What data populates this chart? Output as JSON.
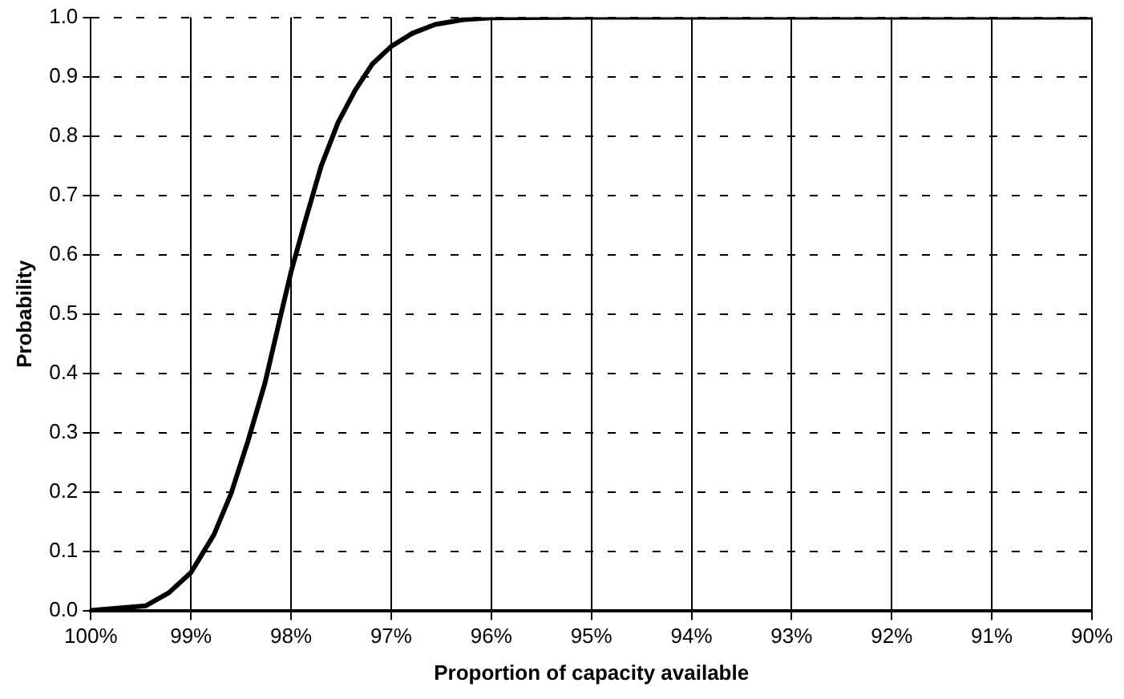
{
  "chart_data": {
    "type": "line",
    "xlabel": "Proportion of capacity available",
    "ylabel": "Probability",
    "x": [
      100,
      99.45,
      99.22,
      99,
      98.77,
      98.6,
      98.43,
      98.26,
      98.1,
      98,
      97.87,
      97.7,
      97.53,
      97.36,
      97.19,
      97,
      96.79,
      96.56,
      96.28,
      96,
      95,
      94,
      93,
      92,
      91,
      90
    ],
    "series": [
      {
        "color": "#000000",
        "values": [
          0,
          0.008,
          0.03,
          0.064,
          0.128,
          0.197,
          0.286,
          0.384,
          0.5,
          0.571,
          0.65,
          0.749,
          0.823,
          0.877,
          0.921,
          0.951,
          0.973,
          0.988,
          0.996,
          0.999,
          1,
          1,
          1,
          1,
          1,
          1
        ]
      }
    ],
    "xlim": [
      100,
      90
    ],
    "xticks": [
      {
        "value": 100,
        "label": "100%"
      },
      {
        "value": 99,
        "label": "99%"
      },
      {
        "value": 98,
        "label": "98%"
      },
      {
        "value": 97,
        "label": "97%"
      },
      {
        "value": 96,
        "label": "96%"
      },
      {
        "value": 95,
        "label": "95%"
      },
      {
        "value": 94,
        "label": "94%"
      },
      {
        "value": 93,
        "label": "93%"
      },
      {
        "value": 92,
        "label": "92%"
      },
      {
        "value": 91,
        "label": "91%"
      },
      {
        "value": 90,
        "label": "90%"
      }
    ],
    "ylim": [
      0,
      1
    ],
    "yticks": [
      {
        "value": 0,
        "label": "0.0"
      },
      {
        "value": 0.1,
        "label": "0.1"
      },
      {
        "value": 0.2,
        "label": "0.2"
      },
      {
        "value": 0.3,
        "label": "0.3"
      },
      {
        "value": 0.4,
        "label": "0.4"
      },
      {
        "value": 0.5,
        "label": "0.5"
      },
      {
        "value": 0.6,
        "label": "0.6"
      },
      {
        "value": 0.7,
        "label": "0.7"
      },
      {
        "value": 0.8,
        "label": "0.8"
      },
      {
        "value": 0.9,
        "label": "0.9"
      },
      {
        "value": 1,
        "label": "1.0"
      }
    ],
    "grid": true,
    "legend": false,
    "marker": "none",
    "line_style": "solid"
  }
}
